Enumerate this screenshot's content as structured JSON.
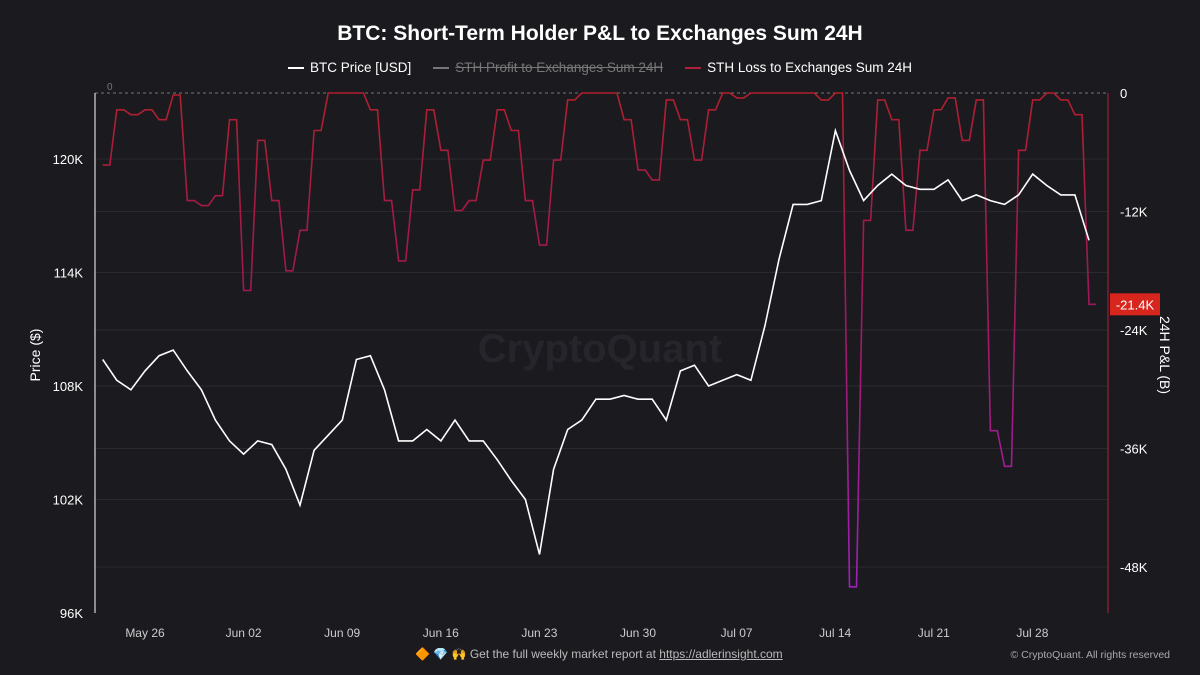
{
  "chart_data": {
    "type": "line",
    "title": "BTC: Short-Term Holder P&L to Exchanges Sum 24H",
    "left_ylabel": "Price ($)",
    "right_ylabel": "24H P&L (B)",
    "left_ylim": [
      96000,
      126000
    ],
    "right_ylim": [
      -53000,
      0
    ],
    "left_ticks": [
      "96K",
      "102K",
      "108K",
      "114K",
      "120K"
    ],
    "left_tick_values": [
      96000,
      102000,
      108000,
      114000,
      120000
    ],
    "right_ticks": [
      "0",
      "-12K",
      "-24K",
      "-36K",
      "-48K"
    ],
    "right_tick_values": [
      0,
      -12000,
      -24000,
      -36000,
      -48000
    ],
    "top_left_label": "0",
    "x_ticks": [
      "May 26",
      "Jun 02",
      "Jun 09",
      "Jun 16",
      "Jun 23",
      "Jun 30",
      "Jul 07",
      "Jul 14",
      "Jul 21",
      "Jul 28"
    ],
    "x_start": "2025-05-23",
    "last_value_tag": "-21.4K",
    "grid": true,
    "legend_position": "top",
    "watermark": "CryptoQuant",
    "series": [
      {
        "name": "BTC Price [USD]",
        "axis": "left",
        "color": "#ffffff",
        "visible": true,
        "values": [
          109400,
          108300,
          107800,
          108800,
          109600,
          109900,
          108800,
          107800,
          106200,
          105100,
          104400,
          105100,
          104900,
          103600,
          101700,
          104600,
          105400,
          106200,
          109400,
          109600,
          107800,
          105100,
          105100,
          105700,
          105100,
          106200,
          105100,
          105100,
          104100,
          103000,
          102000,
          99100,
          103600,
          105700,
          106200,
          107300,
          107300,
          107500,
          107300,
          107300,
          106200,
          108800,
          109100,
          108000,
          108300,
          108600,
          108300,
          111200,
          114700,
          117600,
          117600,
          117800,
          121500,
          119400,
          117800,
          118600,
          119200,
          118600,
          118400,
          118400,
          118900,
          117800,
          118100,
          117800,
          117600,
          118100,
          119200,
          118600,
          118100,
          118100,
          115700
        ]
      },
      {
        "name": "STH Profit to Exchanges Sum 24H",
        "axis": "right",
        "color": "#888888",
        "visible": false,
        "values": []
      },
      {
        "name": "STH Loss to Exchanges Sum 24H",
        "axis": "right",
        "color": "#b0203a",
        "visible": true,
        "values": [
          -7300,
          -1700,
          -2200,
          -1700,
          -2700,
          -200,
          -10900,
          -11400,
          -10400,
          -2700,
          -20000,
          -4800,
          -10900,
          -18000,
          -13900,
          -3800,
          0,
          0,
          0,
          -1700,
          -10900,
          -17000,
          -9800,
          -1700,
          -5800,
          -11900,
          -10900,
          -6800,
          -1700,
          -3800,
          -10900,
          -15400,
          -6800,
          -700,
          0,
          0,
          0,
          -2700,
          -7800,
          -8800,
          -700,
          -2700,
          -6800,
          -1700,
          0,
          -500,
          0,
          0,
          0,
          0,
          0,
          -700,
          0,
          -50000,
          -12900,
          -700,
          -2700,
          -13900,
          -5800,
          -1700,
          -500,
          -4800,
          -700,
          -34200,
          -37800,
          -5800,
          -700,
          0,
          -700,
          -2200,
          -21400
        ]
      }
    ]
  },
  "footer": {
    "emoji": "🔶 💎 🙌",
    "text": "Get the full weekly market report at",
    "link": "https://adlerinsight.com",
    "copyright": "© CryptoQuant. All rights reserved"
  }
}
